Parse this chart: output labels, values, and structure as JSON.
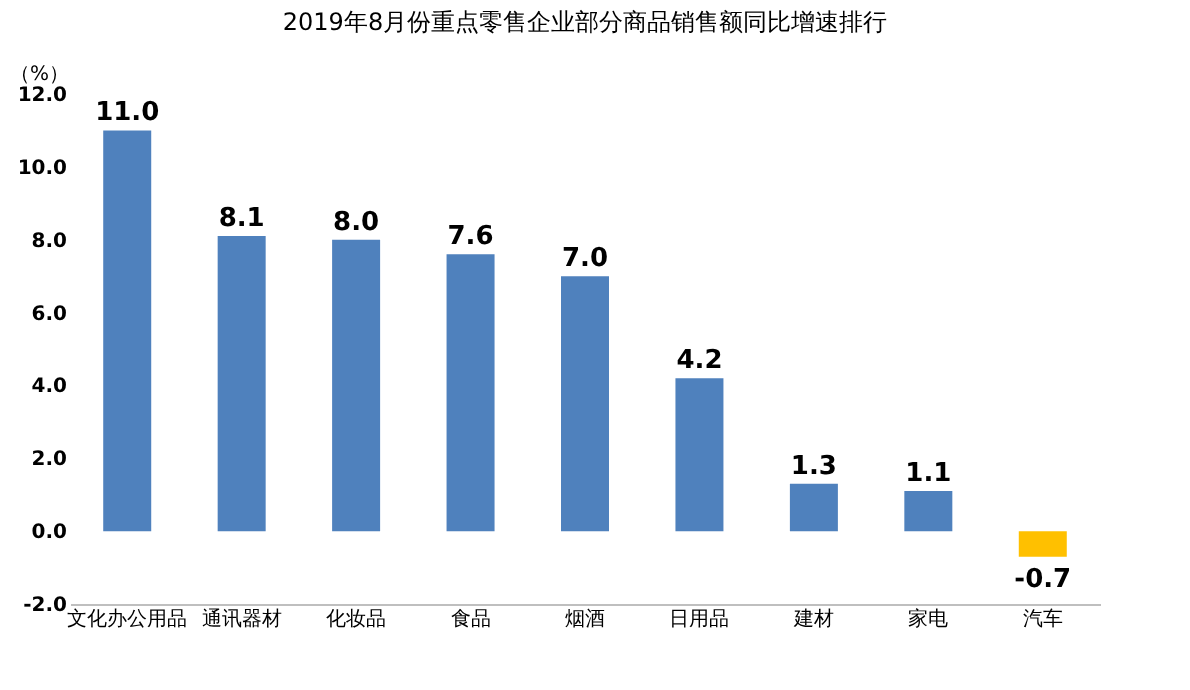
{
  "chart_data": {
    "type": "bar",
    "title": "2019年8月份重点零售企业部分商品销售额同比增速排行",
    "ylabel": "（%）",
    "categories": [
      "文化办公用品",
      "通讯器材",
      "化妆品",
      "食品",
      "烟酒",
      "日用品",
      "建材",
      "家电",
      "汽车"
    ],
    "values": [
      11.0,
      8.1,
      8.0,
      7.6,
      7.0,
      4.2,
      1.3,
      1.1,
      -0.7
    ],
    "colors": [
      "#4f81bd",
      "#4f81bd",
      "#4f81bd",
      "#4f81bd",
      "#4f81bd",
      "#4f81bd",
      "#4f81bd",
      "#4f81bd",
      "#ffc000"
    ],
    "value_labels": [
      "11.0",
      "8.1",
      "8.0",
      "7.6",
      "7.0",
      "4.2",
      "1.3",
      "1.1",
      "-0.7"
    ],
    "ylim": [
      -2,
      12
    ],
    "yticks": [
      {
        "value": -2,
        "label": "-2.0"
      },
      {
        "value": 0,
        "label": "0.0"
      },
      {
        "value": 2,
        "label": "2.0"
      },
      {
        "value": 4,
        "label": "4.0"
      },
      {
        "value": 6,
        "label": "6.0"
      },
      {
        "value": 8,
        "label": "8.0"
      },
      {
        "value": 10,
        "label": "10.0"
      },
      {
        "value": 12,
        "label": "12.0"
      }
    ],
    "grid": false
  }
}
